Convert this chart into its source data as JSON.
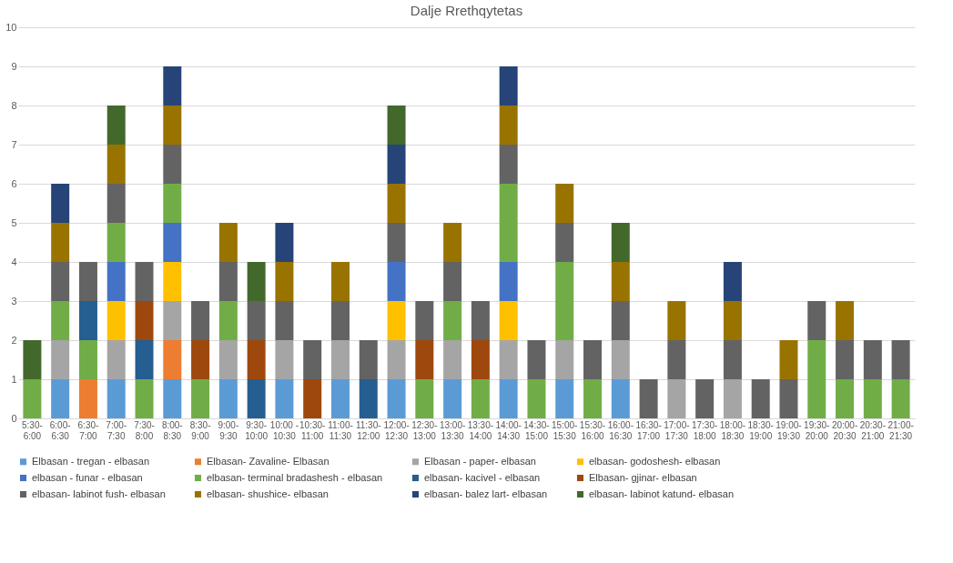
{
  "chart_data": {
    "type": "bar",
    "title": "Dalje Rrethqytetas",
    "stacked": true,
    "legend": "bottom",
    "grid": "y",
    "ylim": [
      0,
      10
    ],
    "yticks": [
      0,
      1,
      2,
      3,
      4,
      5,
      6,
      7,
      8,
      9,
      10
    ],
    "categories": [
      "5:30-6:00",
      "6:00-6:30",
      "6:30-7:00",
      "7:00-7:30",
      "7:30-8:00",
      "8:00-8:30",
      "8:30-9:00",
      "9:00-9:30",
      "9:30-10:00",
      "10:00 - 10:30",
      "10:30-11:00",
      "11:00-11:30",
      "11:30-12:00",
      "12:00-12:30",
      "12:30-13:00",
      "13:00-13:30",
      "13:30-14:00",
      "14:00-14:30",
      "14:30-15:00",
      "15:00-15:30",
      "15:30-16:00",
      "16:00-16:30",
      "16:30-17:00",
      "17:00-17:30",
      "17:30-18:00",
      "18:00-18:30",
      "18:30-19:00",
      "19:00-19:30",
      "19:30-20:00",
      "20:00-20:30",
      "20:30-21:00",
      "21:00-21:30"
    ],
    "series": [
      {
        "name": "Elbasan - tregan - elbasan",
        "color": "#5b9bd5",
        "values": [
          null,
          1,
          null,
          1,
          null,
          1,
          null,
          1,
          null,
          1,
          null,
          1,
          null,
          1,
          null,
          1,
          null,
          1,
          null,
          1,
          null,
          1,
          null,
          null,
          null,
          null,
          null,
          null,
          null,
          null,
          null,
          null
        ]
      },
      {
        "name": "Elbasan- Zavaline- Elbasan",
        "color": "#ed7d31",
        "values": [
          null,
          null,
          1,
          null,
          null,
          1,
          null,
          null,
          null,
          null,
          null,
          null,
          null,
          null,
          null,
          null,
          null,
          null,
          null,
          null,
          null,
          null,
          null,
          null,
          null,
          null,
          null,
          null,
          null,
          null,
          null,
          null
        ]
      },
      {
        "name": "Elbasan - paper- elbasan",
        "color": "#a5a5a5",
        "values": [
          null,
          1,
          null,
          1,
          null,
          1,
          null,
          1,
          null,
          1,
          null,
          1,
          null,
          1,
          null,
          1,
          null,
          1,
          null,
          1,
          null,
          1,
          null,
          1,
          null,
          1,
          null,
          null,
          null,
          null,
          null,
          null
        ]
      },
      {
        "name": "elbasan- godoshesh- elbasan",
        "color": "#ffc000",
        "values": [
          null,
          null,
          null,
          1,
          null,
          1,
          null,
          null,
          null,
          null,
          null,
          null,
          null,
          1,
          null,
          null,
          null,
          1,
          null,
          null,
          null,
          null,
          null,
          null,
          null,
          null,
          null,
          null,
          null,
          null,
          null,
          null
        ]
      },
      {
        "name": "elbasan - funar - elbasan",
        "color": "#4472c4",
        "values": [
          null,
          null,
          null,
          1,
          null,
          1,
          null,
          null,
          null,
          null,
          null,
          null,
          null,
          1,
          null,
          null,
          null,
          1,
          null,
          null,
          null,
          null,
          null,
          null,
          null,
          null,
          null,
          null,
          null,
          null,
          null,
          null
        ]
      },
      {
        "name": "elbasan- terminal bradashesh - elbasan",
        "color": "#70ad47",
        "values": [
          1,
          1,
          1,
          1,
          1,
          1,
          1,
          1,
          null,
          null,
          null,
          null,
          null,
          null,
          1,
          1,
          1,
          2,
          1,
          2,
          1,
          null,
          null,
          null,
          null,
          null,
          null,
          null,
          2,
          1,
          1,
          1
        ]
      },
      {
        "name": "elbasan- kacivel - elbasan",
        "color": "#255e91",
        "values": [
          null,
          null,
          1,
          null,
          1,
          null,
          null,
          null,
          1,
          null,
          null,
          null,
          1,
          null,
          null,
          null,
          null,
          null,
          null,
          null,
          null,
          null,
          null,
          null,
          null,
          null,
          null,
          null,
          null,
          null,
          null,
          null
        ]
      },
      {
        "name": "Elbasan- gjinar- elbasan",
        "color": "#9e480e",
        "values": [
          null,
          null,
          null,
          null,
          1,
          null,
          1,
          null,
          1,
          null,
          1,
          null,
          null,
          null,
          1,
          null,
          1,
          null,
          null,
          null,
          null,
          null,
          null,
          null,
          null,
          null,
          null,
          null,
          null,
          null,
          null,
          null
        ]
      },
      {
        "name": "elbasan- labinot fush- elbasan",
        "color": "#636363",
        "values": [
          null,
          1,
          1,
          1,
          1,
          1,
          1,
          1,
          1,
          1,
          1,
          1,
          1,
          1,
          1,
          1,
          1,
          1,
          1,
          1,
          1,
          1,
          1,
          1,
          1,
          1,
          1,
          1,
          1,
          1,
          1,
          1
        ]
      },
      {
        "name": "elbasan- shushice- elbasan",
        "color": "#997300",
        "values": [
          null,
          1,
          null,
          1,
          null,
          1,
          null,
          1,
          null,
          1,
          null,
          1,
          null,
          1,
          null,
          1,
          null,
          1,
          null,
          1,
          null,
          1,
          null,
          1,
          null,
          1,
          null,
          1,
          null,
          1,
          null,
          null
        ]
      },
      {
        "name": "elbasan- balez lart- elbasan",
        "color": "#264478",
        "values": [
          null,
          1,
          null,
          null,
          null,
          1,
          null,
          null,
          null,
          1,
          null,
          null,
          null,
          1,
          null,
          null,
          null,
          1,
          null,
          null,
          null,
          null,
          null,
          null,
          null,
          1,
          null,
          null,
          null,
          null,
          null,
          null
        ]
      },
      {
        "name": "elbasan- labinot katund- elbasan",
        "color": "#43682b",
        "values": [
          1,
          null,
          null,
          1,
          null,
          null,
          null,
          null,
          1,
          null,
          null,
          null,
          null,
          1,
          null,
          null,
          null,
          null,
          null,
          null,
          null,
          1,
          null,
          null,
          null,
          null,
          null,
          null,
          null,
          null,
          null,
          null
        ]
      }
    ]
  }
}
